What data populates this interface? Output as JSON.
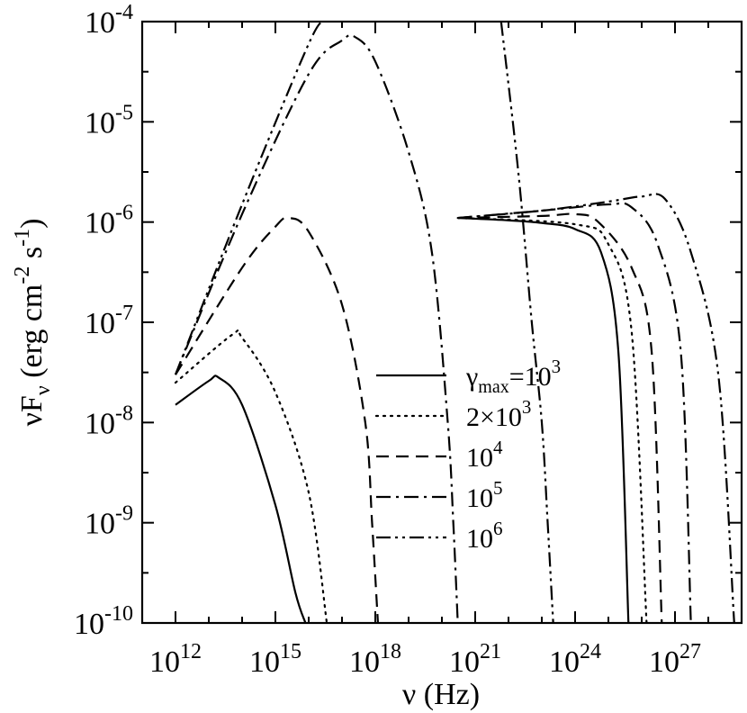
{
  "chart_data": {
    "type": "line",
    "xscale": "log",
    "yscale": "log",
    "xlim": [
      100000000000.0,
      1e+29
    ],
    "ylim": [
      1e-10,
      0.0001
    ],
    "grid": false,
    "legend_position": "center-right",
    "xlabel": {
      "sym": "ν",
      "unit": " (Hz)"
    },
    "ylabel": {
      "sym": "νF",
      "sub": "ν",
      "p1": " (erg cm",
      "e1": "-2",
      "p2": " s",
      "e2": "-1",
      "p3": ")"
    },
    "xticks": [
      {
        "value": 1000000000000.0,
        "base": "10",
        "exp": "12"
      },
      {
        "value": 1000000000000000.0,
        "base": "10",
        "exp": "15"
      },
      {
        "value": 1e+18,
        "base": "10",
        "exp": "18"
      },
      {
        "value": 1e+21,
        "base": "10",
        "exp": "21"
      },
      {
        "value": 1e+24,
        "base": "10",
        "exp": "24"
      },
      {
        "value": 1e+27,
        "base": "10",
        "exp": "27"
      }
    ],
    "yticks": [
      {
        "value": 1e-10,
        "base": "10",
        "exp": "-10"
      },
      {
        "value": 1e-09,
        "base": "10",
        "exp": "-9"
      },
      {
        "value": 1e-08,
        "base": "10",
        "exp": "-8"
      },
      {
        "value": 1e-07,
        "base": "10",
        "exp": "-7"
      },
      {
        "value": 1e-06,
        "base": "10",
        "exp": "-6"
      },
      {
        "value": 1e-05,
        "base": "10",
        "exp": "-5"
      },
      {
        "value": 0.0001,
        "base": "10",
        "exp": "-4"
      }
    ],
    "series": [
      {
        "legend": {
          "pre": "γ",
          "sub": "max",
          "mid": "=10",
          "exp": "3"
        },
        "style": "solid",
        "segments": [
          [
            [
              1000000000000.0,
              1.5e-08
            ],
            [
              10000000000000.0,
              2.6e-08
            ],
            [
              20000000000000.0,
              2.8e-08
            ],
            [
              100000000000000.0,
              1.5e-08
            ],
            [
              1000000000000000.0,
              1.5e-09
            ],
            [
              4000000000000000.0,
              2e-10
            ],
            [
              8000000000000000.0,
              1e-10
            ]
          ],
          [
            [
              3e+20,
              1.1e-06
            ],
            [
              1e+22,
              1.04e-06
            ],
            [
              1e+23,
              9.8e-07
            ],
            [
              1e+24,
              8.5e-07
            ],
            [
              6e+24,
              5e-07
            ],
            [
              2e+25,
              5e-08
            ],
            [
              4e+25,
              1e-10
            ]
          ]
        ]
      },
      {
        "legend": {
          "pre": "",
          "sub": "",
          "mid": "2×10",
          "exp": "3"
        },
        "style": "dotted",
        "segments": [
          [
            [
              1000000000000.0,
              2.5e-08
            ],
            [
              50000000000000.0,
              7.5e-08
            ],
            [
              100000000000000.0,
              7e-08
            ],
            [
              1000000000000000.0,
              2e-08
            ],
            [
              1e+16,
              2e-09
            ],
            [
              3.5e+16,
              1e-10
            ]
          ],
          [
            [
              3e+20,
              1.1e-06
            ],
            [
              1e+24,
              9.5e-07
            ],
            [
              1e+25,
              6e-07
            ],
            [
              5e+25,
              8e-08
            ],
            [
              1.4e+26,
              1e-10
            ]
          ]
        ]
      },
      {
        "legend": {
          "pre": "",
          "sub": "",
          "mid": "10",
          "exp": "4"
        },
        "style": "dashed",
        "segments": [
          [
            [
              1000000000000.0,
              3e-08
            ],
            [
              100000000000000.0,
              3.5e-07
            ],
            [
              1000000000000000.0,
              9e-07
            ],
            [
              2500000000000000.0,
              1.1e-06
            ],
            [
              1e+16,
              8e-07
            ],
            [
              1e+17,
              1.5e-07
            ],
            [
              5e+17,
              1e-08
            ],
            [
              8e+17,
              1e-09
            ],
            [
              1.2e+18,
              1e-10
            ]
          ],
          [
            [
              3e+20,
              1.1e-06
            ],
            [
              1e+23,
              1.15e-06
            ],
            [
              1e+24,
              1.2e-06
            ],
            [
              5e+24,
              1e-06
            ],
            [
              5e+25,
              3.5e-07
            ],
            [
              2e+26,
              5e-08
            ],
            [
              4e+26,
              1e-10
            ]
          ]
        ]
      },
      {
        "legend": {
          "pre": "",
          "sub": "",
          "mid": "10",
          "exp": "5"
        },
        "style": "dashdot",
        "segments": [
          [
            [
              1000000000000.0,
              3e-08
            ],
            [
              100000000000000.0,
              1.2e-06
            ],
            [
              1e+16,
              3e-05
            ],
            [
              1e+17,
              6.5e-05
            ],
            [
              2.5e+17,
              7e-05
            ],
            [
              1e+18,
              4e-05
            ],
            [
              1e+19,
              5e-06
            ],
            [
              5e+19,
              5e-07
            ],
            [
              1.5e+20,
              1e-08
            ],
            [
              2.2e+20,
              1e-09
            ],
            [
              3e+20,
              1e-10
            ]
          ],
          [
            [
              3e+20,
              1.1e-06
            ],
            [
              1e+23,
              1.3e-06
            ],
            [
              1e+25,
              1.5e-06
            ],
            [
              5e+25,
              1.4e-06
            ],
            [
              3e+26,
              6e-07
            ],
            [
              1.5e+27,
              5e-08
            ],
            [
              3e+27,
              1e-10
            ]
          ]
        ]
      },
      {
        "legend": {
          "pre": "",
          "sub": "",
          "mid": "10",
          "exp": "6"
        },
        "style": "dashdotdot",
        "segments": [
          [
            [
              1000000000000.0,
              3e-08
            ],
            [
              100000000000000.0,
              1.5e-06
            ],
            [
              1e+16,
              6e-05
            ],
            [
              3e+16,
              0.0001
            ]
          ],
          [
            [
              3e+20,
              1.1e-06
            ],
            [
              1e+23,
              1.3e-06
            ],
            [
              1e+25,
              1.6e-06
            ],
            [
              1e+26,
              1.8e-06
            ],
            [
              5e+26,
              1.7e-06
            ],
            [
              3e+27,
              5e-07
            ],
            [
              2e+28,
              3e-08
            ],
            [
              6e+28,
              1e-10
            ]
          ],
          [
            [
              6e+21,
              0.0001
            ],
            [
              2e+22,
              3e-06
            ],
            [
              5e+22,
              1e-07
            ],
            [
              1e+23,
              1e-08
            ],
            [
              1.5e+23,
              1e-09
            ],
            [
              2.2e+23,
              1e-10
            ]
          ]
        ]
      }
    ]
  }
}
